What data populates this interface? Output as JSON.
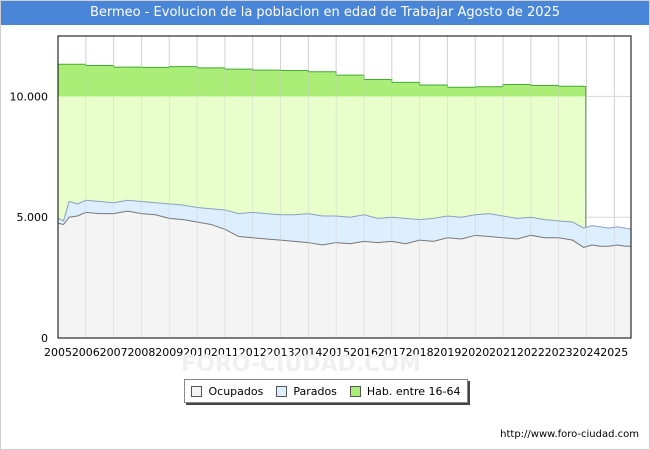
{
  "chart_data": {
    "type": "area",
    "title": "Bermeo - Evolucion de la poblacion en edad de Trabajar Agosto de 2025",
    "x_ticks": [
      "2005",
      "2006",
      "2007",
      "2008",
      "2009",
      "2010",
      "2011",
      "2012",
      "2013",
      "2014",
      "2015",
      "2016",
      "2017",
      "2018",
      "2019",
      "2020",
      "2021",
      "2022",
      "2023",
      "2024",
      "2025"
    ],
    "y_ticks": [
      {
        "value": 0,
        "label": "0"
      },
      {
        "value": 5000,
        "label": "5.000"
      },
      {
        "value": 10000,
        "label": "10.000"
      }
    ],
    "xlim": [
      2005,
      2025.6
    ],
    "ylim": [
      0,
      12500
    ],
    "grid": true,
    "legend_position": "bottom",
    "series": [
      {
        "name": "Hab. entre 16-64",
        "color": "#eeffd0",
        "line_color": "#44aa33",
        "x": [
          2005.0,
          2006.0,
          2007.0,
          2008.0,
          2009.0,
          2010.0,
          2011.0,
          2012.0,
          2013.0,
          2014.0,
          2015.0,
          2016.0,
          2017.0,
          2018.0,
          2019.0,
          2020.0,
          2021.0,
          2022.0,
          2023.0,
          2023.9
        ],
        "values": [
          11330,
          11280,
          11210,
          11200,
          11230,
          11180,
          11130,
          11090,
          11070,
          11020,
          10880,
          10700,
          10580,
          10470,
          10380,
          10400,
          10490,
          10450,
          10420,
          10410
        ]
      },
      {
        "name": "Parados",
        "color": "#ddeeff",
        "line_color": "#8aa0c0",
        "x": [
          2005.0,
          2005.2,
          2005.4,
          2005.7,
          2006.0,
          2006.5,
          2007.0,
          2007.5,
          2008.0,
          2008.5,
          2009.0,
          2009.5,
          2010.0,
          2010.5,
          2011.0,
          2011.5,
          2012.0,
          2012.5,
          2013.0,
          2013.5,
          2014.0,
          2014.5,
          2015.0,
          2015.5,
          2016.0,
          2016.5,
          2017.0,
          2017.5,
          2018.0,
          2018.5,
          2019.0,
          2019.5,
          2020.0,
          2020.5,
          2021.0,
          2021.5,
          2022.0,
          2022.5,
          2023.0,
          2023.5,
          2023.9,
          2024.2,
          2024.5,
          2024.8,
          2025.1,
          2025.4,
          2025.6
        ],
        "values": [
          4950,
          4850,
          5650,
          5550,
          5700,
          5650,
          5600,
          5700,
          5650,
          5600,
          5550,
          5500,
          5400,
          5350,
          5300,
          5150,
          5200,
          5150,
          5100,
          5100,
          5150,
          5050,
          5050,
          5000,
          5100,
          4950,
          5000,
          4950,
          4900,
          4950,
          5050,
          5000,
          5100,
          5150,
          5050,
          4950,
          5000,
          4900,
          4850,
          4800,
          4550,
          4650,
          4600,
          4550,
          4600,
          4550,
          4500
        ]
      },
      {
        "name": "Ocupados",
        "color": "#f4f4f4",
        "line_color": "#777777",
        "x": [
          2005.0,
          2005.2,
          2005.4,
          2005.7,
          2006.0,
          2006.5,
          2007.0,
          2007.5,
          2008.0,
          2008.5,
          2009.0,
          2009.5,
          2010.0,
          2010.5,
          2011.0,
          2011.5,
          2012.0,
          2012.5,
          2013.0,
          2013.5,
          2014.0,
          2014.5,
          2015.0,
          2015.5,
          2016.0,
          2016.5,
          2017.0,
          2017.5,
          2018.0,
          2018.5,
          2019.0,
          2019.5,
          2020.0,
          2020.5,
          2021.0,
          2021.5,
          2022.0,
          2022.5,
          2023.0,
          2023.5,
          2023.9,
          2024.2,
          2024.5,
          2024.8,
          2025.1,
          2025.4,
          2025.6
        ],
        "values": [
          4750,
          4700,
          5000,
          5050,
          5200,
          5150,
          5150,
          5250,
          5150,
          5100,
          4950,
          4900,
          4800,
          4700,
          4500,
          4200,
          4150,
          4100,
          4050,
          4000,
          3950,
          3850,
          3950,
          3900,
          4000,
          3950,
          4000,
          3900,
          4050,
          4000,
          4150,
          4100,
          4250,
          4200,
          4150,
          4100,
          4250,
          4150,
          4150,
          4050,
          3750,
          3850,
          3800,
          3800,
          3850,
          3800,
          3800
        ]
      }
    ]
  },
  "legend": {
    "items": [
      {
        "label": "Ocupados",
        "color": "#f4f4f4"
      },
      {
        "label": "Parados",
        "color": "#ddeeff"
      },
      {
        "label": "Hab. entre 16-64",
        "color": "#aaee77"
      }
    ]
  },
  "watermark": "FORO-CIUDAD.COM",
  "source_url": "http://www.foro-ciudad.com"
}
